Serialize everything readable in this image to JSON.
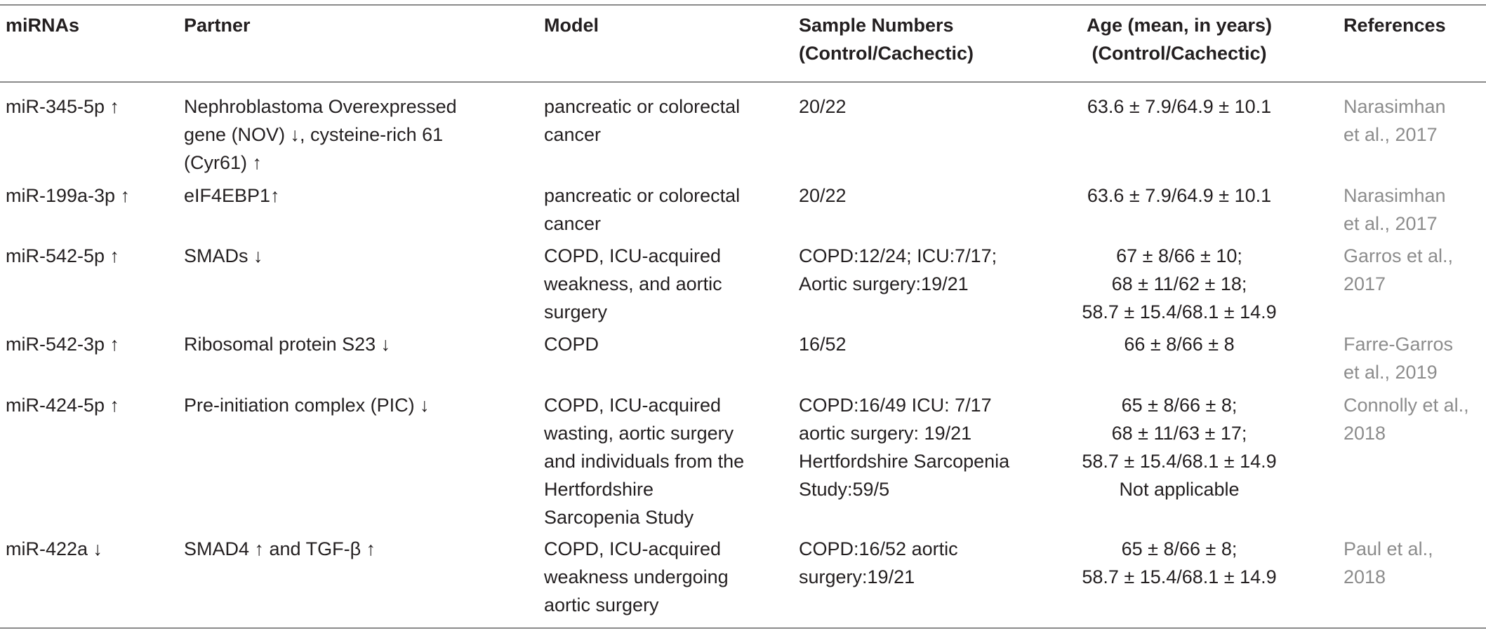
{
  "columns": [
    "miRNAs",
    "Partner",
    "Model",
    "Sample Numbers (Control/Cachectic)",
    "Age (mean, in years) (Control/Cachectic)",
    "References"
  ],
  "header": {
    "mirnas": "miRNAs",
    "partner": "Partner",
    "model": "Model",
    "sample_l1": "Sample Numbers",
    "sample_l2": "(Control/Cachectic)",
    "age_l1": "Age (mean, in years)",
    "age_l2": "(Control/Cachectic)",
    "references": "References"
  },
  "rows": [
    {
      "mirna": "miR-345-5p ↑",
      "partner": [
        "Nephroblastoma Overexpressed",
        "gene (NOV) ↓, cysteine-rich 61",
        "(Cyr61) ↑"
      ],
      "model": [
        "pancreatic or colorectal",
        "cancer"
      ],
      "samples": [
        "20/22"
      ],
      "age": [
        "63.6 ± 7.9/64.9 ± 10.1"
      ],
      "reference": [
        "Narasimhan",
        "et al., 2017"
      ]
    },
    {
      "mirna": "miR-199a-3p ↑",
      "partner": [
        "eIF4EBP1↑"
      ],
      "model": [
        "pancreatic or colorectal",
        "cancer"
      ],
      "samples": [
        "20/22"
      ],
      "age": [
        "63.6 ± 7.9/64.9 ± 10.1"
      ],
      "reference": [
        "Narasimhan",
        "et al., 2017"
      ]
    },
    {
      "mirna": "miR-542-5p ↑",
      "partner": [
        "SMADs ↓"
      ],
      "model": [
        "COPD, ICU-acquired",
        "weakness, and aortic",
        "surgery"
      ],
      "samples": [
        "COPD:12/24; ICU:7/17;",
        "Aortic surgery:19/21"
      ],
      "age": [
        "67 ± 8/66 ± 10;",
        "68 ± 11/62 ± 18;",
        "58.7 ± 15.4/68.1 ± 14.9"
      ],
      "reference": [
        "Garros et al.,",
        "2017"
      ]
    },
    {
      "mirna": "miR-542-3p ↑",
      "partner": [
        "Ribosomal protein S23 ↓"
      ],
      "model": [
        "COPD"
      ],
      "samples": [
        "16/52"
      ],
      "age": [
        "66 ± 8/66 ± 8"
      ],
      "reference": [
        "Farre-Garros",
        "et al., 2019"
      ]
    },
    {
      "mirna": "miR-424-5p ↑",
      "partner": [
        "Pre-initiation complex (PIC) ↓"
      ],
      "model": [
        "COPD, ICU-acquired",
        "wasting, aortic surgery",
        "and individuals from the",
        "Hertfordshire",
        "Sarcopenia Study"
      ],
      "samples": [
        "COPD:16/49 ICU: 7/17",
        "aortic surgery: 19/21",
        "Hertfordshire Sarcopenia",
        "Study:59/5"
      ],
      "age": [
        "65 ± 8/66 ± 8;",
        "68 ± 11/63 ± 17;",
        "58.7 ± 15.4/68.1 ± 14.9",
        "Not applicable"
      ],
      "reference": [
        "Connolly et al.,",
        "2018"
      ]
    },
    {
      "mirna": "miR-422a ↓",
      "partner": [
        "SMAD4 ↑ and TGF-β ↑"
      ],
      "model": [
        "COPD, ICU-acquired",
        "weakness undergoing",
        "aortic surgery"
      ],
      "samples": [
        "COPD:16/52 aortic",
        "surgery:19/21"
      ],
      "age": [
        "65 ± 8/66 ± 8;",
        "58.7 ± 15.4/68.1 ± 14.9"
      ],
      "reference": [
        "Paul et al.,",
        "2018"
      ]
    }
  ]
}
